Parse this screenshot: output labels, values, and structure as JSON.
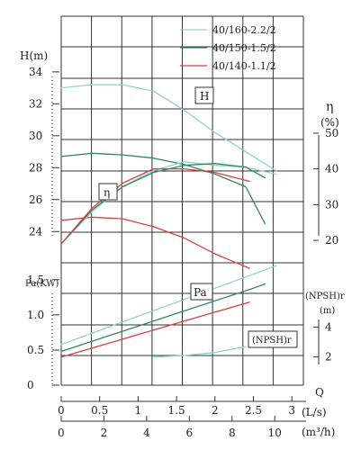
{
  "chart_data": {
    "type": "line",
    "legend": {
      "placement": "top-right",
      "items": [
        {
          "name": "40/160-2.2/2",
          "color": "#8fd3cf"
        },
        {
          "name": "40/150-1.5/2",
          "color": "#2e8a58"
        },
        {
          "name": "40/140-1.1/2",
          "color": "#d84040"
        }
      ]
    },
    "axes": {
      "x_flow_ls": {
        "label": "Q",
        "unit": "(L/s)",
        "ticks": [
          "0",
          "0.5",
          "1",
          "1.5",
          "2",
          "2.5",
          "3"
        ],
        "range": [
          0,
          3.15
        ]
      },
      "x_flow_m3h": {
        "unit": "(m³/h)",
        "ticks": [
          "0",
          "2",
          "4",
          "6",
          "8",
          "10"
        ],
        "range": [
          0,
          11.34
        ]
      },
      "head": {
        "label": "H(m)",
        "ticks": [
          "24",
          "26",
          "28",
          "30",
          "32",
          "34"
        ],
        "range": [
          23,
          34.5
        ]
      },
      "efficiency": {
        "label": "η",
        "unit": "(%)",
        "ticks": [
          "20",
          "30",
          "40",
          "50"
        ],
        "range": [
          18,
          52
        ]
      },
      "power": {
        "label": "Pa(KW)",
        "ticks": [
          "0",
          "0.5",
          "1.0",
          "1.5"
        ],
        "range": [
          0,
          1.6
        ]
      },
      "npsh": {
        "label": "(NPSH)r",
        "unit": "(m)",
        "ticks": [
          "2",
          "4"
        ],
        "range": [
          1.5,
          4.5
        ]
      }
    },
    "box_labels": {
      "head": "H",
      "efficiency": "η",
      "power": "Pa",
      "npsh": "(NPSH)r"
    },
    "grid": true,
    "series": {
      "head": [
        {
          "name": "40/160-2.2/2",
          "x": [
            0,
            0.4,
            0.8,
            1.2,
            1.6,
            2.0,
            2.4,
            2.8
          ],
          "y": [
            33.0,
            33.2,
            33.2,
            32.8,
            31.6,
            30.2,
            29.0,
            27.8
          ]
        },
        {
          "name": "40/150-1.5/2",
          "x": [
            0,
            0.4,
            0.8,
            1.2,
            1.6,
            2.0,
            2.4,
            2.65
          ],
          "y": [
            28.7,
            28.9,
            28.8,
            28.6,
            28.2,
            27.6,
            26.8,
            24.5
          ]
        },
        {
          "name": "40/140-1.1/2",
          "x": [
            0,
            0.4,
            0.8,
            1.2,
            1.6,
            2.0,
            2.45
          ],
          "y": [
            24.7,
            24.9,
            24.8,
            24.3,
            23.6,
            22.6,
            21.7
          ]
        }
      ],
      "efficiency": [
        {
          "name": "40/160-2.2/2",
          "x": [
            0,
            0.4,
            0.8,
            1.2,
            1.6,
            2.0,
            2.4,
            2.8
          ],
          "y": [
            19.0,
            28.0,
            35.0,
            39.5,
            42.0,
            41.0,
            40.5,
            38.5
          ]
        },
        {
          "name": "40/150-1.5/2",
          "x": [
            0,
            0.4,
            0.8,
            1.2,
            1.6,
            2.0,
            2.4,
            2.65
          ],
          "y": [
            19.0,
            28.5,
            35.0,
            39.0,
            41.0,
            41.5,
            40.5,
            37.5
          ]
        },
        {
          "name": "40/140-1.1/2",
          "x": [
            0,
            0.4,
            0.8,
            1.2,
            1.6,
            2.0,
            2.45
          ],
          "y": [
            19.0,
            29.0,
            36.0,
            40.0,
            40.0,
            39.0,
            36.5
          ]
        }
      ],
      "power": [
        {
          "name": "40/160-2.2/2",
          "x": [
            0,
            0.5,
            1.0,
            1.5,
            2.0,
            2.5,
            2.8
          ],
          "y": [
            0.58,
            0.78,
            0.98,
            1.18,
            1.38,
            1.58,
            1.7
          ]
        },
        {
          "name": "40/150-1.5/2",
          "x": [
            0,
            0.5,
            1.0,
            1.5,
            2.0,
            2.5,
            2.65
          ],
          "y": [
            0.48,
            0.66,
            0.84,
            1.02,
            1.2,
            1.38,
            1.44
          ]
        },
        {
          "name": "40/140-1.1/2",
          "x": [
            0,
            0.5,
            1.0,
            1.5,
            2.0,
            2.45
          ],
          "y": [
            0.4,
            0.56,
            0.72,
            0.88,
            1.04,
            1.18
          ]
        }
      ],
      "npsh": [
        {
          "name": "40/160-2.2/2",
          "x": [
            1.2,
            1.6,
            2.0,
            2.4
          ],
          "y": [
            2.0,
            2.1,
            2.3,
            2.7
          ]
        }
      ]
    }
  }
}
